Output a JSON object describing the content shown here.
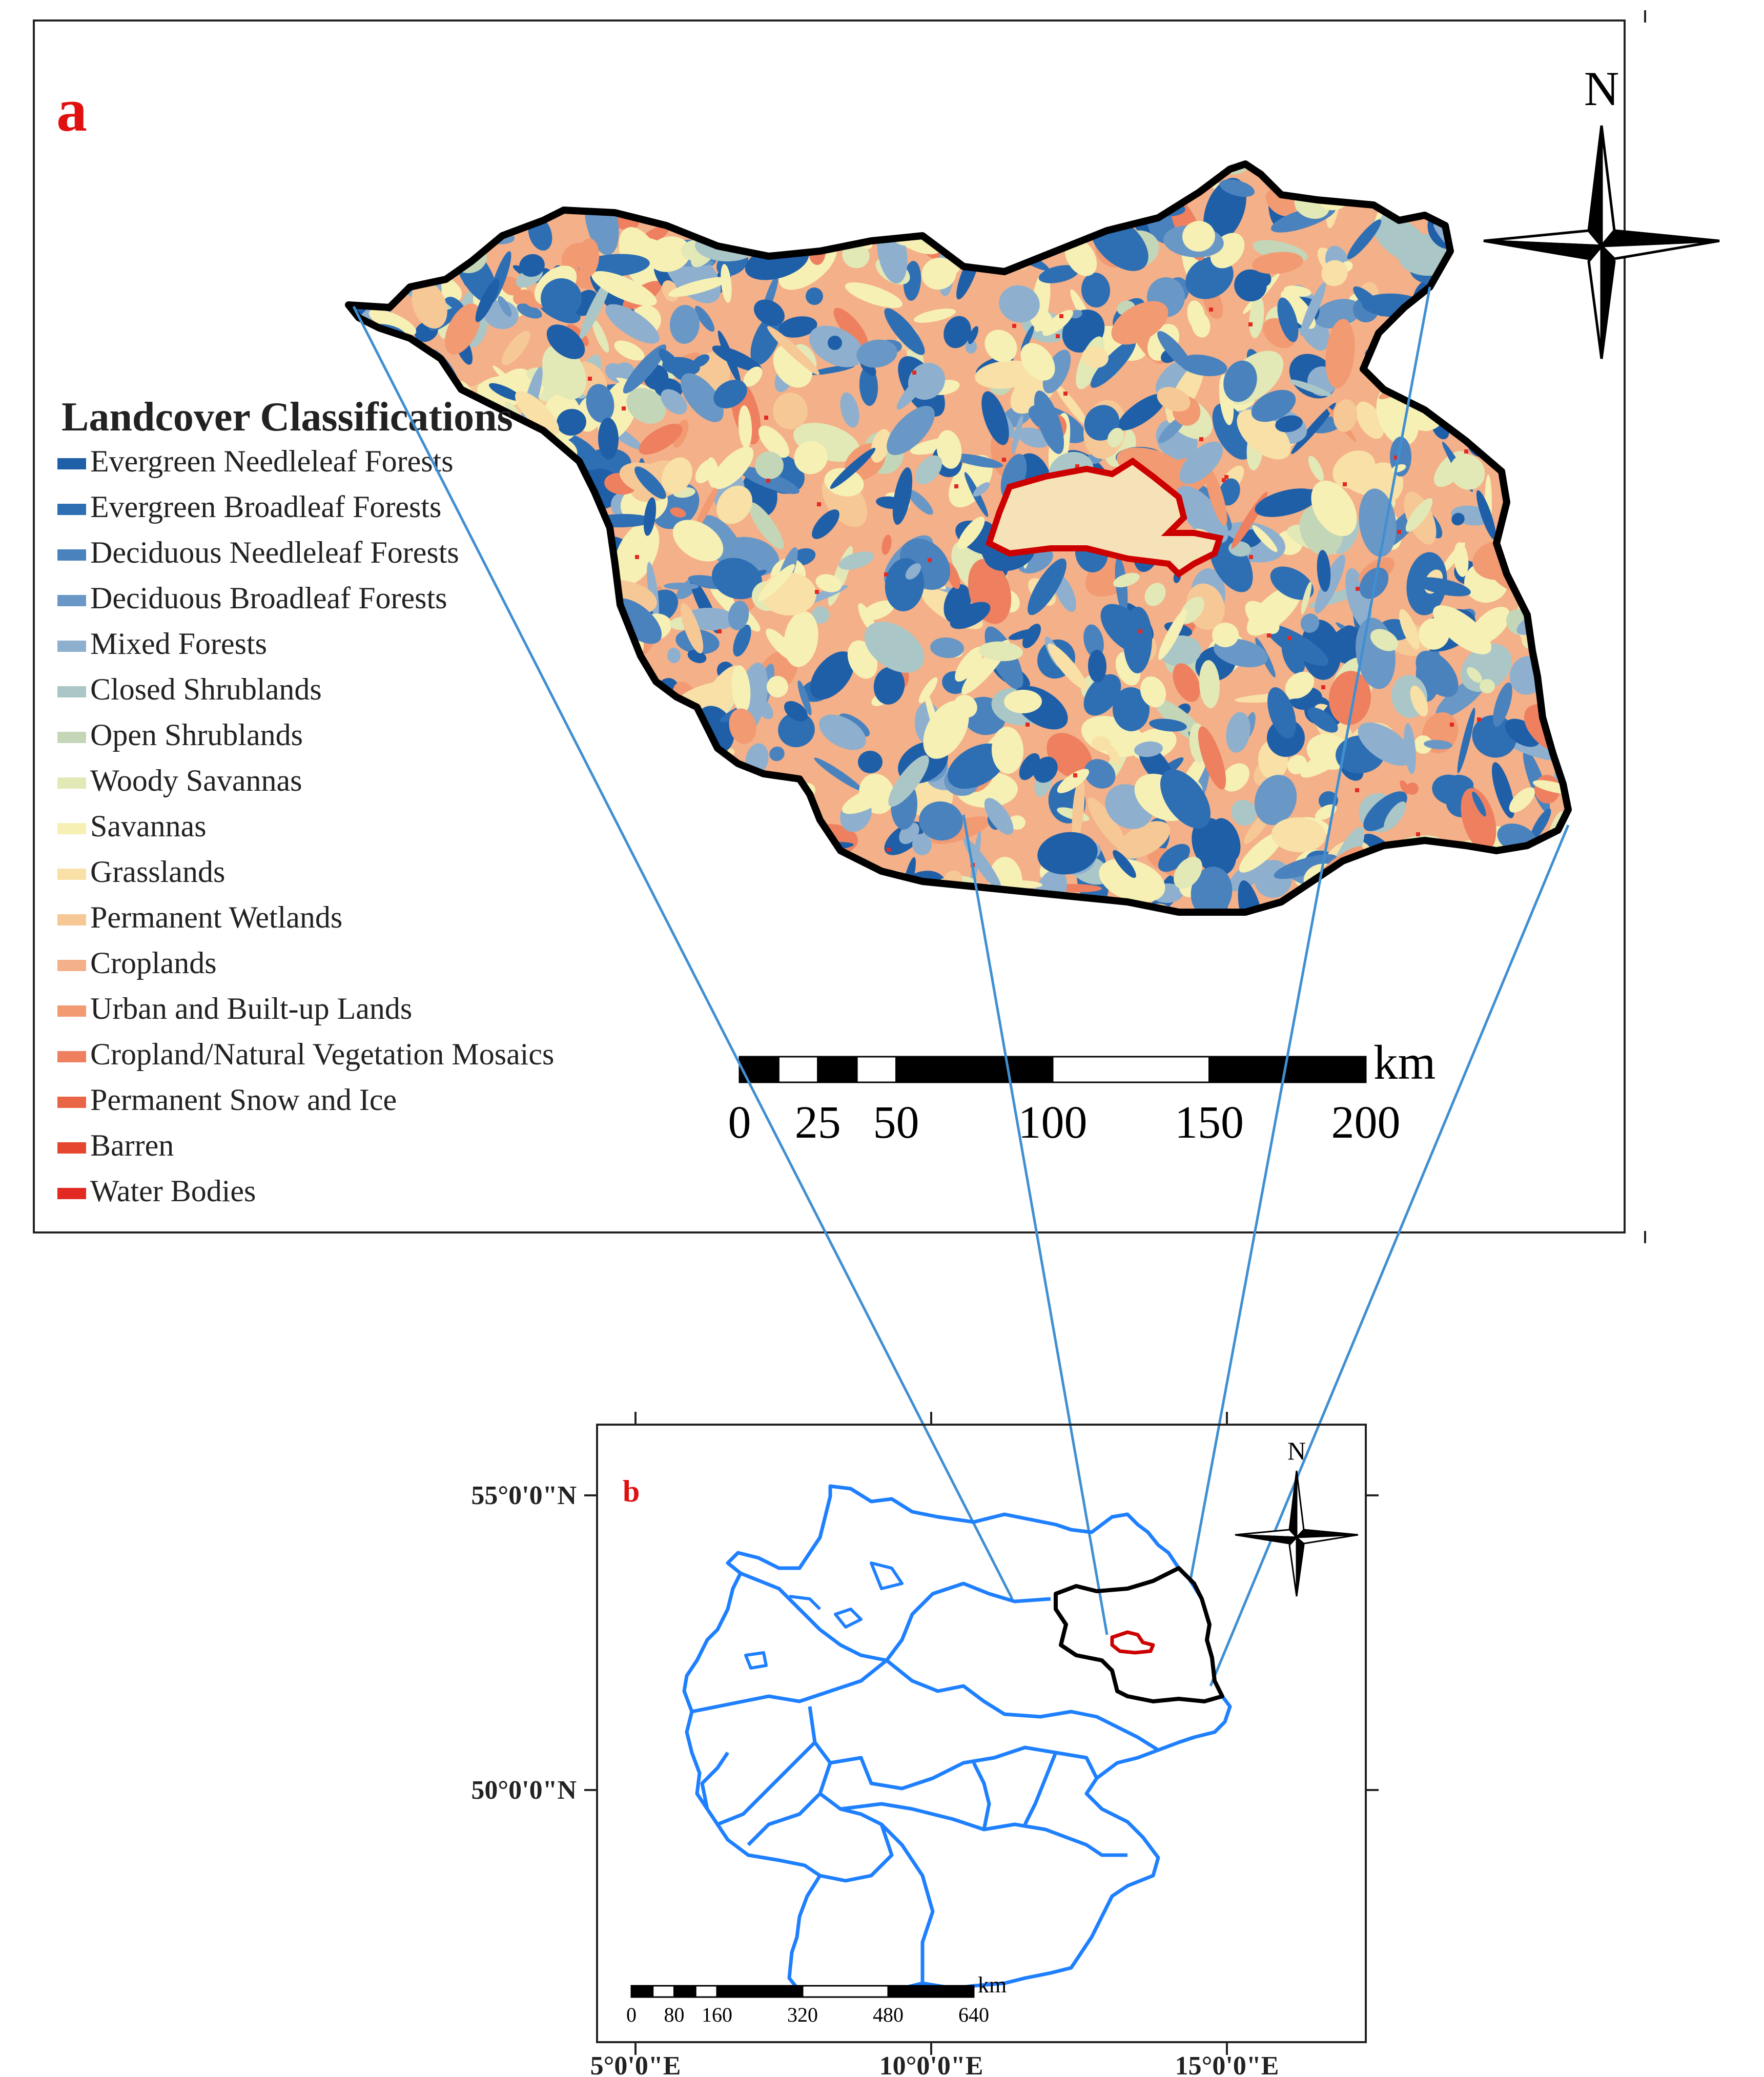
{
  "panel_a": {
    "label": "a",
    "north_label": "N",
    "legend": {
      "title": "Landcover Classifications",
      "items": [
        {
          "label": "Evergreen Needleleaf Forests",
          "color": "#1f5fa8"
        },
        {
          "label": "Evergreen Broadleaf Forests",
          "color": "#2e6fb4"
        },
        {
          "label": "Deciduous Needleleaf Forests",
          "color": "#4a82be"
        },
        {
          "label": "Deciduous Broadleaf Forests",
          "color": "#6a98c6"
        },
        {
          "label": "Mixed Forests",
          "color": "#8eb0ce"
        },
        {
          "label": "Closed Shrublands",
          "color": "#aac6c6"
        },
        {
          "label": "Open Shrublands",
          "color": "#c4d6b8"
        },
        {
          "label": "Woody Savannas",
          "color": "#e2e8b6"
        },
        {
          "label": "Savannas",
          "color": "#f6f0b4"
        },
        {
          "label": "Grasslands",
          "color": "#f8e0a6"
        },
        {
          "label": "Permanent Wetlands",
          "color": "#f6c896"
        },
        {
          "label": "Croplands",
          "color": "#f4b088"
        },
        {
          "label": "Urban and Built-up Lands",
          "color": "#f29a72"
        },
        {
          "label": "Cropland/Natural Vegetation Mosaics",
          "color": "#ee8060"
        },
        {
          "label": "Permanent Snow and Ice",
          "color": "#ea6446"
        },
        {
          "label": "Barren",
          "color": "#e64630"
        },
        {
          "label": "Water Bodies",
          "color": "#e22a22"
        }
      ]
    },
    "scale_bar": {
      "unit": "km",
      "ticks": [
        "0",
        "25",
        "50",
        "100",
        "150",
        "200"
      ]
    }
  },
  "panel_b": {
    "label": "b",
    "north_label": "N",
    "lat_labels": [
      "55°0'0\"N",
      "50°0'0\"N"
    ],
    "lon_labels": [
      "5°0'0\"E",
      "10°0'0\"E",
      "15°0'0\"E"
    ],
    "scale_bar": {
      "unit": "km",
      "ticks": [
        "0",
        "80",
        "160",
        "320",
        "480",
        "640"
      ]
    }
  },
  "colors": {
    "label_red": "#e01010",
    "connector_blue": "#3f8fd2",
    "state_border_blue": "#1e7fff",
    "city_border_red": "#cc0000"
  }
}
